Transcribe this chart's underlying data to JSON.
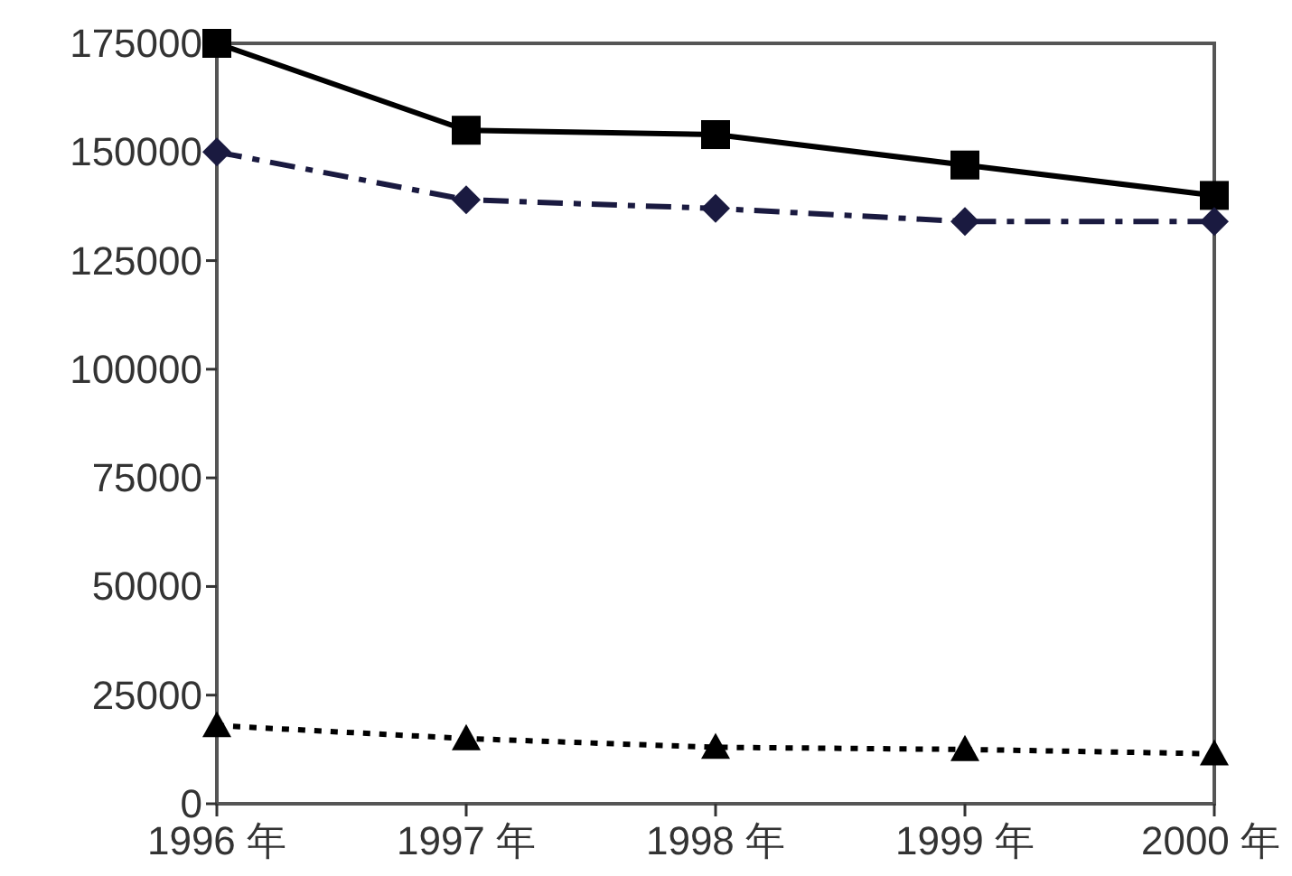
{
  "chart_data": {
    "type": "line",
    "categories": [
      "1996 年",
      "1997 年",
      "1998 年",
      "1999 年",
      "2000 年"
    ],
    "series": [
      {
        "color": "#000000",
        "marker": "square",
        "line_style": "solid",
        "values": [
          175000,
          155000,
          154000,
          147000,
          140000
        ]
      },
      {
        "color": "#1a1a40",
        "marker": "diamond",
        "line_style": "dashdot",
        "values": [
          150000,
          139000,
          137000,
          134000,
          134000
        ]
      },
      {
        "color": "#000000",
        "marker": "triangle",
        "line_style": "dotted",
        "values": [
          18000,
          15000,
          13000,
          12500,
          11500
        ]
      }
    ],
    "ylim": [
      0,
      175000
    ],
    "yticks": [
      0,
      25000,
      50000,
      75000,
      100000,
      125000,
      150000,
      175000
    ],
    "grid": false
  }
}
